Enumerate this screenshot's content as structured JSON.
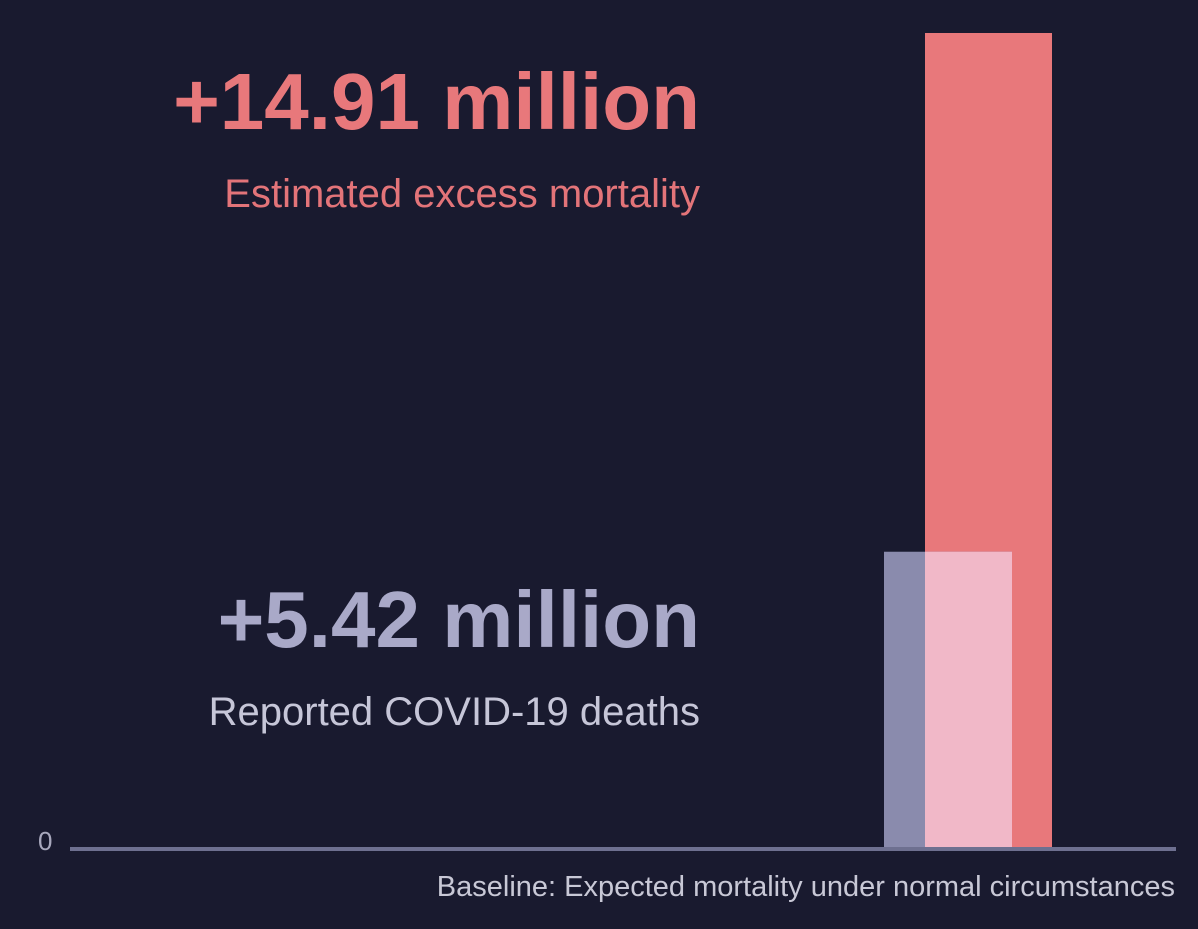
{
  "chart_data": {
    "type": "bar",
    "title": "",
    "xlabel": "Baseline: Expected mortality under normal circumstances",
    "ylabel": "",
    "y_tick_labels": [
      "0"
    ],
    "ylim": [
      0,
      14.91
    ],
    "grid": false,
    "series": [
      {
        "name": "Reported COVID-19 deaths",
        "value": 5.42,
        "label": "+5.42 million",
        "color": "#8a8bad"
      },
      {
        "name": "Estimated excess mortality",
        "value": 14.91,
        "label": "+14.91 million",
        "color": "#e8787b"
      }
    ],
    "overlap_color": "#f1b8c8"
  }
}
